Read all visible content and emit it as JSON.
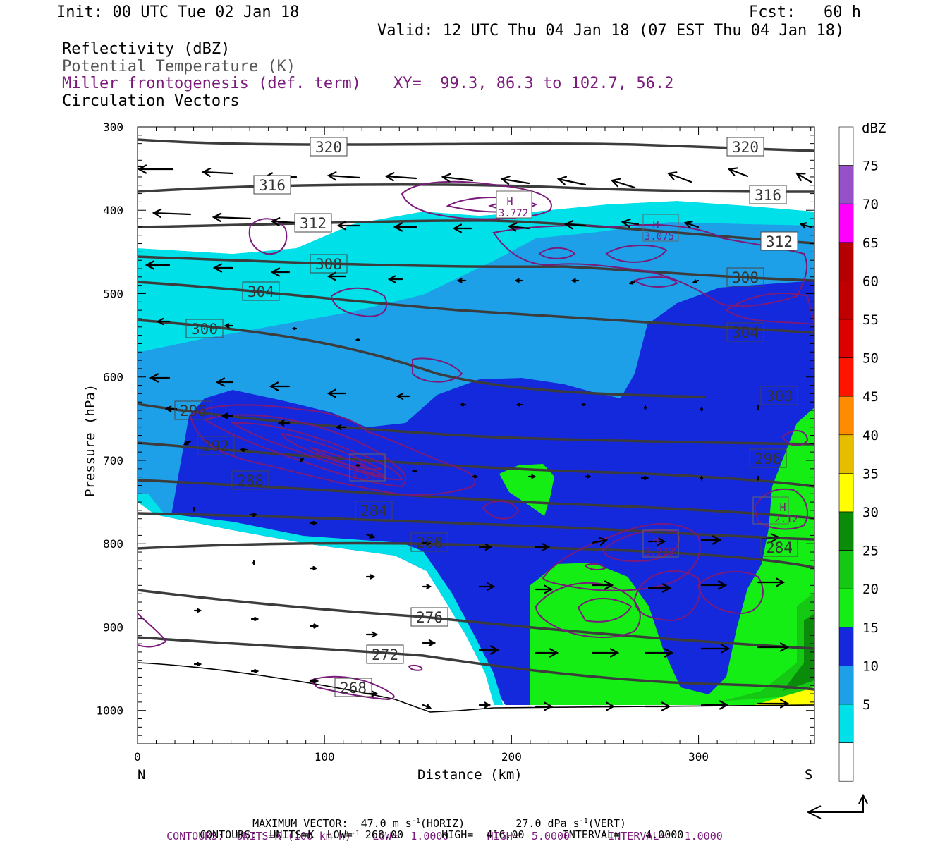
{
  "header": {
    "init": "Init: 00 UTC Tue 02 Jan 18",
    "fcst": "Fcst:   60 h",
    "valid": "Valid: 12 UTC Thu 04 Jan 18 (07 EST Thu 04 Jan 18)",
    "field1": "Reflectivity (dBZ)",
    "field2": "Potential Temperature (K)",
    "field3": "Miller frontogenesis (def. term)",
    "xy": "XY=  99.3, 86.3 to 102.7, 56.2",
    "field4": "Circulation Vectors"
  },
  "colors": {
    "theta": "#3c3c3c",
    "frontogenesis": "#7a1a7a",
    "dbz_5": "#00e0e8",
    "dbz_10": "#1ea0e8",
    "dbz_15": "#1428dc",
    "dbz_20": "#14ee14",
    "dbz_25": "#14c814",
    "dbz_30": "#0a8c0a",
    "dbz_35": "#ffff00",
    "dbz_40": "#e6be00",
    "dbz_45": "#ff8c00",
    "dbz_50": "#ff1400",
    "dbz_55": "#dc0000",
    "dbz_60": "#c00000",
    "dbz_65": "#b40000",
    "dbz_70": "#ff00ff",
    "dbz_75": "#9650c8"
  },
  "chart_data": {
    "type": "cross-section",
    "xlabel": "Distance (km)",
    "ylabel": "Pressure (hPa)",
    "xlim": [
      0,
      362
    ],
    "ylim": [
      300,
      1040
    ],
    "x_ticks": [
      0,
      100,
      200,
      300
    ],
    "y_ticks": [
      300,
      400,
      500,
      600,
      700,
      800,
      900,
      1000
    ],
    "left_end": "N",
    "right_end": "S",
    "colorbar": {
      "unit": "dBZ",
      "levels": [
        5,
        10,
        15,
        20,
        25,
        30,
        35,
        40,
        45,
        50,
        55,
        60,
        65,
        70,
        75
      ]
    },
    "theta_labels": [
      "320",
      "320",
      "316",
      "316",
      "312",
      "312",
      "308",
      "308",
      "304",
      "304",
      "300",
      "300",
      "296",
      "296",
      "292",
      "288",
      "284",
      "284",
      "280",
      "276",
      "272",
      "268"
    ],
    "frontogenesis_maxima": [
      "3.772",
      "3.075",
      "5.331",
      "3.279",
      "2.12"
    ],
    "maximum_label": "H"
  },
  "footer": {
    "max_vector": "MAXIMUM VECTOR:  47.0 m s",
    "max_vector_h": "(HORIZ)",
    "max_vector_v": "27.0 dPa s",
    "max_vector_v2": "(VERT)",
    "sup": "-1",
    "contours1_a": "CONTOURS:  UNITS=K (100 km h)",
    "contours1_b": "  LOW=  1.0000      HIGH=  5.0000      INTERVAL=   1.0000",
    "contours2": "CONTOURS:  UNITS=K  LOW=  268.00      HIGH=  416.00      INTERVAL=    4.0000"
  }
}
